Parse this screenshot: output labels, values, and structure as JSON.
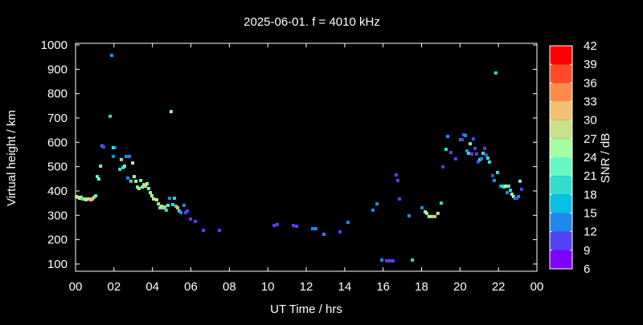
{
  "chart_data": {
    "type": "scatter",
    "title": "2025-06-01. f = 4010 kHz",
    "xlabel": "UT Time / hrs",
    "ylabel": "Virtual height / km",
    "colorbar_label": "SNR / dB",
    "xlim": [
      0,
      24
    ],
    "ylim": [
      70,
      1005
    ],
    "xticks": [
      "00",
      "02",
      "04",
      "06",
      "08",
      "10",
      "12",
      "14",
      "16",
      "18",
      "20",
      "22",
      "00"
    ],
    "xtick_values": [
      0,
      2,
      4,
      6,
      8,
      10,
      12,
      14,
      16,
      18,
      20,
      22,
      24
    ],
    "yticks": [
      100,
      200,
      300,
      400,
      500,
      600,
      700,
      800,
      900,
      1000
    ],
    "grid": false,
    "colorbar": {
      "ticks": [
        6,
        9,
        12,
        15,
        18,
        21,
        24,
        27,
        30,
        33,
        36,
        39,
        42
      ],
      "colors": [
        "#8000ff",
        "#5044f6",
        "#2288ec",
        "#08c0e4",
        "#32dcd0",
        "#66f8c2",
        "#a2fca2",
        "#c8e088",
        "#f0c074",
        "#ff8c4c",
        "#ff4a2a",
        "#ff0000"
      ]
    },
    "points": [
      [
        0.04,
        377,
        28
      ],
      [
        0.13,
        374,
        25
      ],
      [
        0.21,
        370,
        28
      ],
      [
        0.29,
        374,
        25
      ],
      [
        0.38,
        367,
        19
      ],
      [
        0.46,
        367,
        28
      ],
      [
        0.54,
        364,
        28
      ],
      [
        0.63,
        367,
        25
      ],
      [
        0.71,
        367,
        28
      ],
      [
        0.79,
        364,
        31
      ],
      [
        0.88,
        367,
        32
      ],
      [
        0.96,
        374,
        32
      ],
      [
        1.05,
        380,
        22
      ],
      [
        1.13,
        459,
        22
      ],
      [
        1.21,
        449,
        22
      ],
      [
        1.3,
        502,
        22
      ],
      [
        1.38,
        585,
        13
      ],
      [
        1.46,
        581,
        10
      ],
      [
        1.8,
        707,
        19
      ],
      [
        1.88,
        957,
        13
      ],
      [
        1.96,
        542,
        13
      ],
      [
        2.05,
        578,
        10
      ],
      [
        1.96,
        578,
        19
      ],
      [
        2.3,
        489,
        19
      ],
      [
        2.38,
        529,
        22
      ],
      [
        2.47,
        496,
        19
      ],
      [
        2.55,
        502,
        22
      ],
      [
        2.63,
        542,
        13
      ],
      [
        2.72,
        453,
        13
      ],
      [
        2.8,
        542,
        13
      ],
      [
        2.88,
        440,
        19
      ],
      [
        2.97,
        515,
        25
      ],
      [
        3.05,
        459,
        25
      ],
      [
        3.14,
        440,
        25
      ],
      [
        3.22,
        416,
        22
      ],
      [
        3.3,
        410,
        28
      ],
      [
        3.39,
        443,
        22
      ],
      [
        3.47,
        416,
        22
      ],
      [
        3.55,
        426,
        28
      ],
      [
        3.64,
        420,
        28
      ],
      [
        3.72,
        430,
        25
      ],
      [
        3.8,
        410,
        22
      ],
      [
        3.89,
        393,
        25
      ],
      [
        3.97,
        380,
        25
      ],
      [
        4.06,
        367,
        28
      ],
      [
        4.22,
        364,
        25
      ],
      [
        4.31,
        347,
        28
      ],
      [
        4.39,
        331,
        22
      ],
      [
        4.47,
        337,
        25
      ],
      [
        4.56,
        331,
        32
      ],
      [
        4.64,
        334,
        22
      ],
      [
        4.72,
        321,
        19
      ],
      [
        4.81,
        341,
        22
      ],
      [
        4.89,
        370,
        13
      ],
      [
        4.97,
        726,
        25
      ],
      [
        5.06,
        344,
        19
      ],
      [
        5.14,
        370,
        19
      ],
      [
        5.23,
        337,
        19
      ],
      [
        5.31,
        331,
        32
      ],
      [
        5.39,
        318,
        19
      ],
      [
        5.48,
        311,
        13
      ],
      [
        5.64,
        341,
        13
      ],
      [
        5.73,
        311,
        10
      ],
      [
        5.81,
        318,
        10
      ],
      [
        5.98,
        285,
        10
      ],
      [
        6.23,
        275,
        10
      ],
      [
        6.65,
        238,
        10
      ],
      [
        7.48,
        238,
        10
      ],
      [
        10.33,
        258,
        10
      ],
      [
        10.49,
        262,
        10
      ],
      [
        11.33,
        258,
        10
      ],
      [
        11.5,
        255,
        10
      ],
      [
        12.33,
        245,
        13
      ],
      [
        12.5,
        245,
        13
      ],
      [
        12.92,
        222,
        13
      ],
      [
        13.75,
        232,
        10
      ],
      [
        14.17,
        271,
        13
      ],
      [
        15.47,
        321,
        13
      ],
      [
        15.68,
        347,
        13
      ],
      [
        15.93,
        116,
        13
      ],
      [
        16.18,
        113,
        10
      ],
      [
        16.35,
        113,
        10
      ],
      [
        16.51,
        113,
        10
      ],
      [
        16.68,
        466,
        10
      ],
      [
        16.76,
        443,
        10
      ],
      [
        16.85,
        367,
        10
      ],
      [
        17.35,
        298,
        13
      ],
      [
        17.52,
        116,
        19
      ],
      [
        18.02,
        331,
        13
      ],
      [
        18.19,
        314,
        25
      ],
      [
        18.27,
        308,
        28
      ],
      [
        18.39,
        295,
        25
      ],
      [
        18.52,
        295,
        28
      ],
      [
        18.69,
        295,
        31
      ],
      [
        18.85,
        308,
        25
      ],
      [
        19.02,
        350,
        19
      ],
      [
        19.11,
        499,
        10
      ],
      [
        19.27,
        571,
        19
      ],
      [
        19.36,
        624,
        13
      ],
      [
        19.52,
        558,
        10
      ],
      [
        19.77,
        532,
        10
      ],
      [
        20.03,
        611,
        13
      ],
      [
        20.11,
        611,
        10
      ],
      [
        20.19,
        631,
        10
      ],
      [
        20.28,
        628,
        13
      ],
      [
        20.36,
        565,
        13
      ],
      [
        20.44,
        555,
        19
      ],
      [
        20.53,
        594,
        22
      ],
      [
        20.61,
        552,
        10
      ],
      [
        20.69,
        614,
        10
      ],
      [
        20.78,
        575,
        10
      ],
      [
        20.86,
        552,
        10
      ],
      [
        20.94,
        519,
        10
      ],
      [
        21.03,
        529,
        19
      ],
      [
        21.11,
        532,
        13
      ],
      [
        21.2,
        555,
        19
      ],
      [
        21.28,
        575,
        10
      ],
      [
        21.36,
        548,
        10
      ],
      [
        21.45,
        535,
        19
      ],
      [
        21.53,
        519,
        19
      ],
      [
        21.7,
        463,
        10
      ],
      [
        21.78,
        443,
        13
      ],
      [
        21.86,
        885,
        19
      ],
      [
        21.95,
        476,
        19
      ],
      [
        22.11,
        420,
        13
      ],
      [
        22.2,
        420,
        19
      ],
      [
        22.28,
        416,
        19
      ],
      [
        22.37,
        420,
        25
      ],
      [
        22.45,
        393,
        13
      ],
      [
        22.53,
        420,
        22
      ],
      [
        22.62,
        403,
        19
      ],
      [
        22.7,
        387,
        25
      ],
      [
        22.78,
        377,
        25
      ],
      [
        22.87,
        370,
        13
      ],
      [
        22.95,
        370,
        10
      ],
      [
        23.04,
        377,
        13
      ],
      [
        23.12,
        440,
        22
      ],
      [
        23.2,
        407,
        10
      ]
    ]
  }
}
